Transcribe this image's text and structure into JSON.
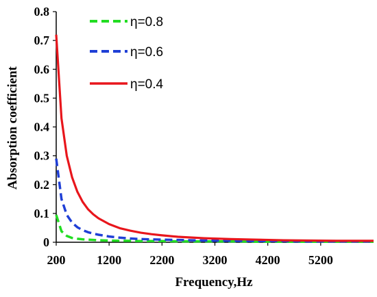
{
  "chart_data": {
    "type": "line",
    "xlabel": "Frequency,Hz",
    "ylabel": "Absorption coefficient",
    "xlim": [
      200,
      6200
    ],
    "ylim": [
      0,
      0.8
    ],
    "x_ticks": [
      200,
      1200,
      2200,
      3200,
      4200,
      5200
    ],
    "y_ticks": [
      0,
      0.1,
      0.2,
      0.3,
      0.4,
      0.5,
      0.6,
      0.7,
      0.8
    ],
    "y_tick_labels": [
      "0",
      "0.1",
      "0.2",
      "0.3",
      "0.4",
      "0.5",
      "0.6",
      "0.7",
      "0.8"
    ],
    "grid": false,
    "legend_position": "top-left",
    "x": [
      200,
      300,
      400,
      500,
      600,
      700,
      800,
      900,
      1000,
      1200,
      1400,
      1600,
      1800,
      2000,
      2200,
      2500,
      3000,
      3500,
      4000,
      4500,
      5000,
      5500,
      6000,
      6200
    ],
    "series": [
      {
        "name": "η=0.8",
        "color": "#22dd22",
        "dash": "dashed",
        "values": [
          0.095,
          0.038,
          0.022,
          0.015,
          0.012,
          0.01,
          0.009,
          0.008,
          0.007,
          0.006,
          0.005,
          0.005,
          0.004,
          0.004,
          0.004,
          0.003,
          0.003,
          0.003,
          0.002,
          0.002,
          0.002,
          0.002,
          0.002,
          0.002
        ]
      },
      {
        "name": "η=0.6",
        "color": "#1f3fd6",
        "dash": "dashed",
        "values": [
          0.29,
          0.15,
          0.095,
          0.068,
          0.052,
          0.042,
          0.035,
          0.03,
          0.026,
          0.02,
          0.016,
          0.013,
          0.011,
          0.01,
          0.009,
          0.008,
          0.006,
          0.005,
          0.004,
          0.004,
          0.003,
          0.003,
          0.003,
          0.003
        ]
      },
      {
        "name": "η=0.4",
        "color": "#e8161c",
        "dash": "solid",
        "values": [
          0.72,
          0.43,
          0.3,
          0.225,
          0.175,
          0.14,
          0.115,
          0.097,
          0.083,
          0.063,
          0.049,
          0.04,
          0.033,
          0.028,
          0.024,
          0.019,
          0.014,
          0.011,
          0.009,
          0.007,
          0.006,
          0.005,
          0.005,
          0.005
        ]
      }
    ]
  }
}
